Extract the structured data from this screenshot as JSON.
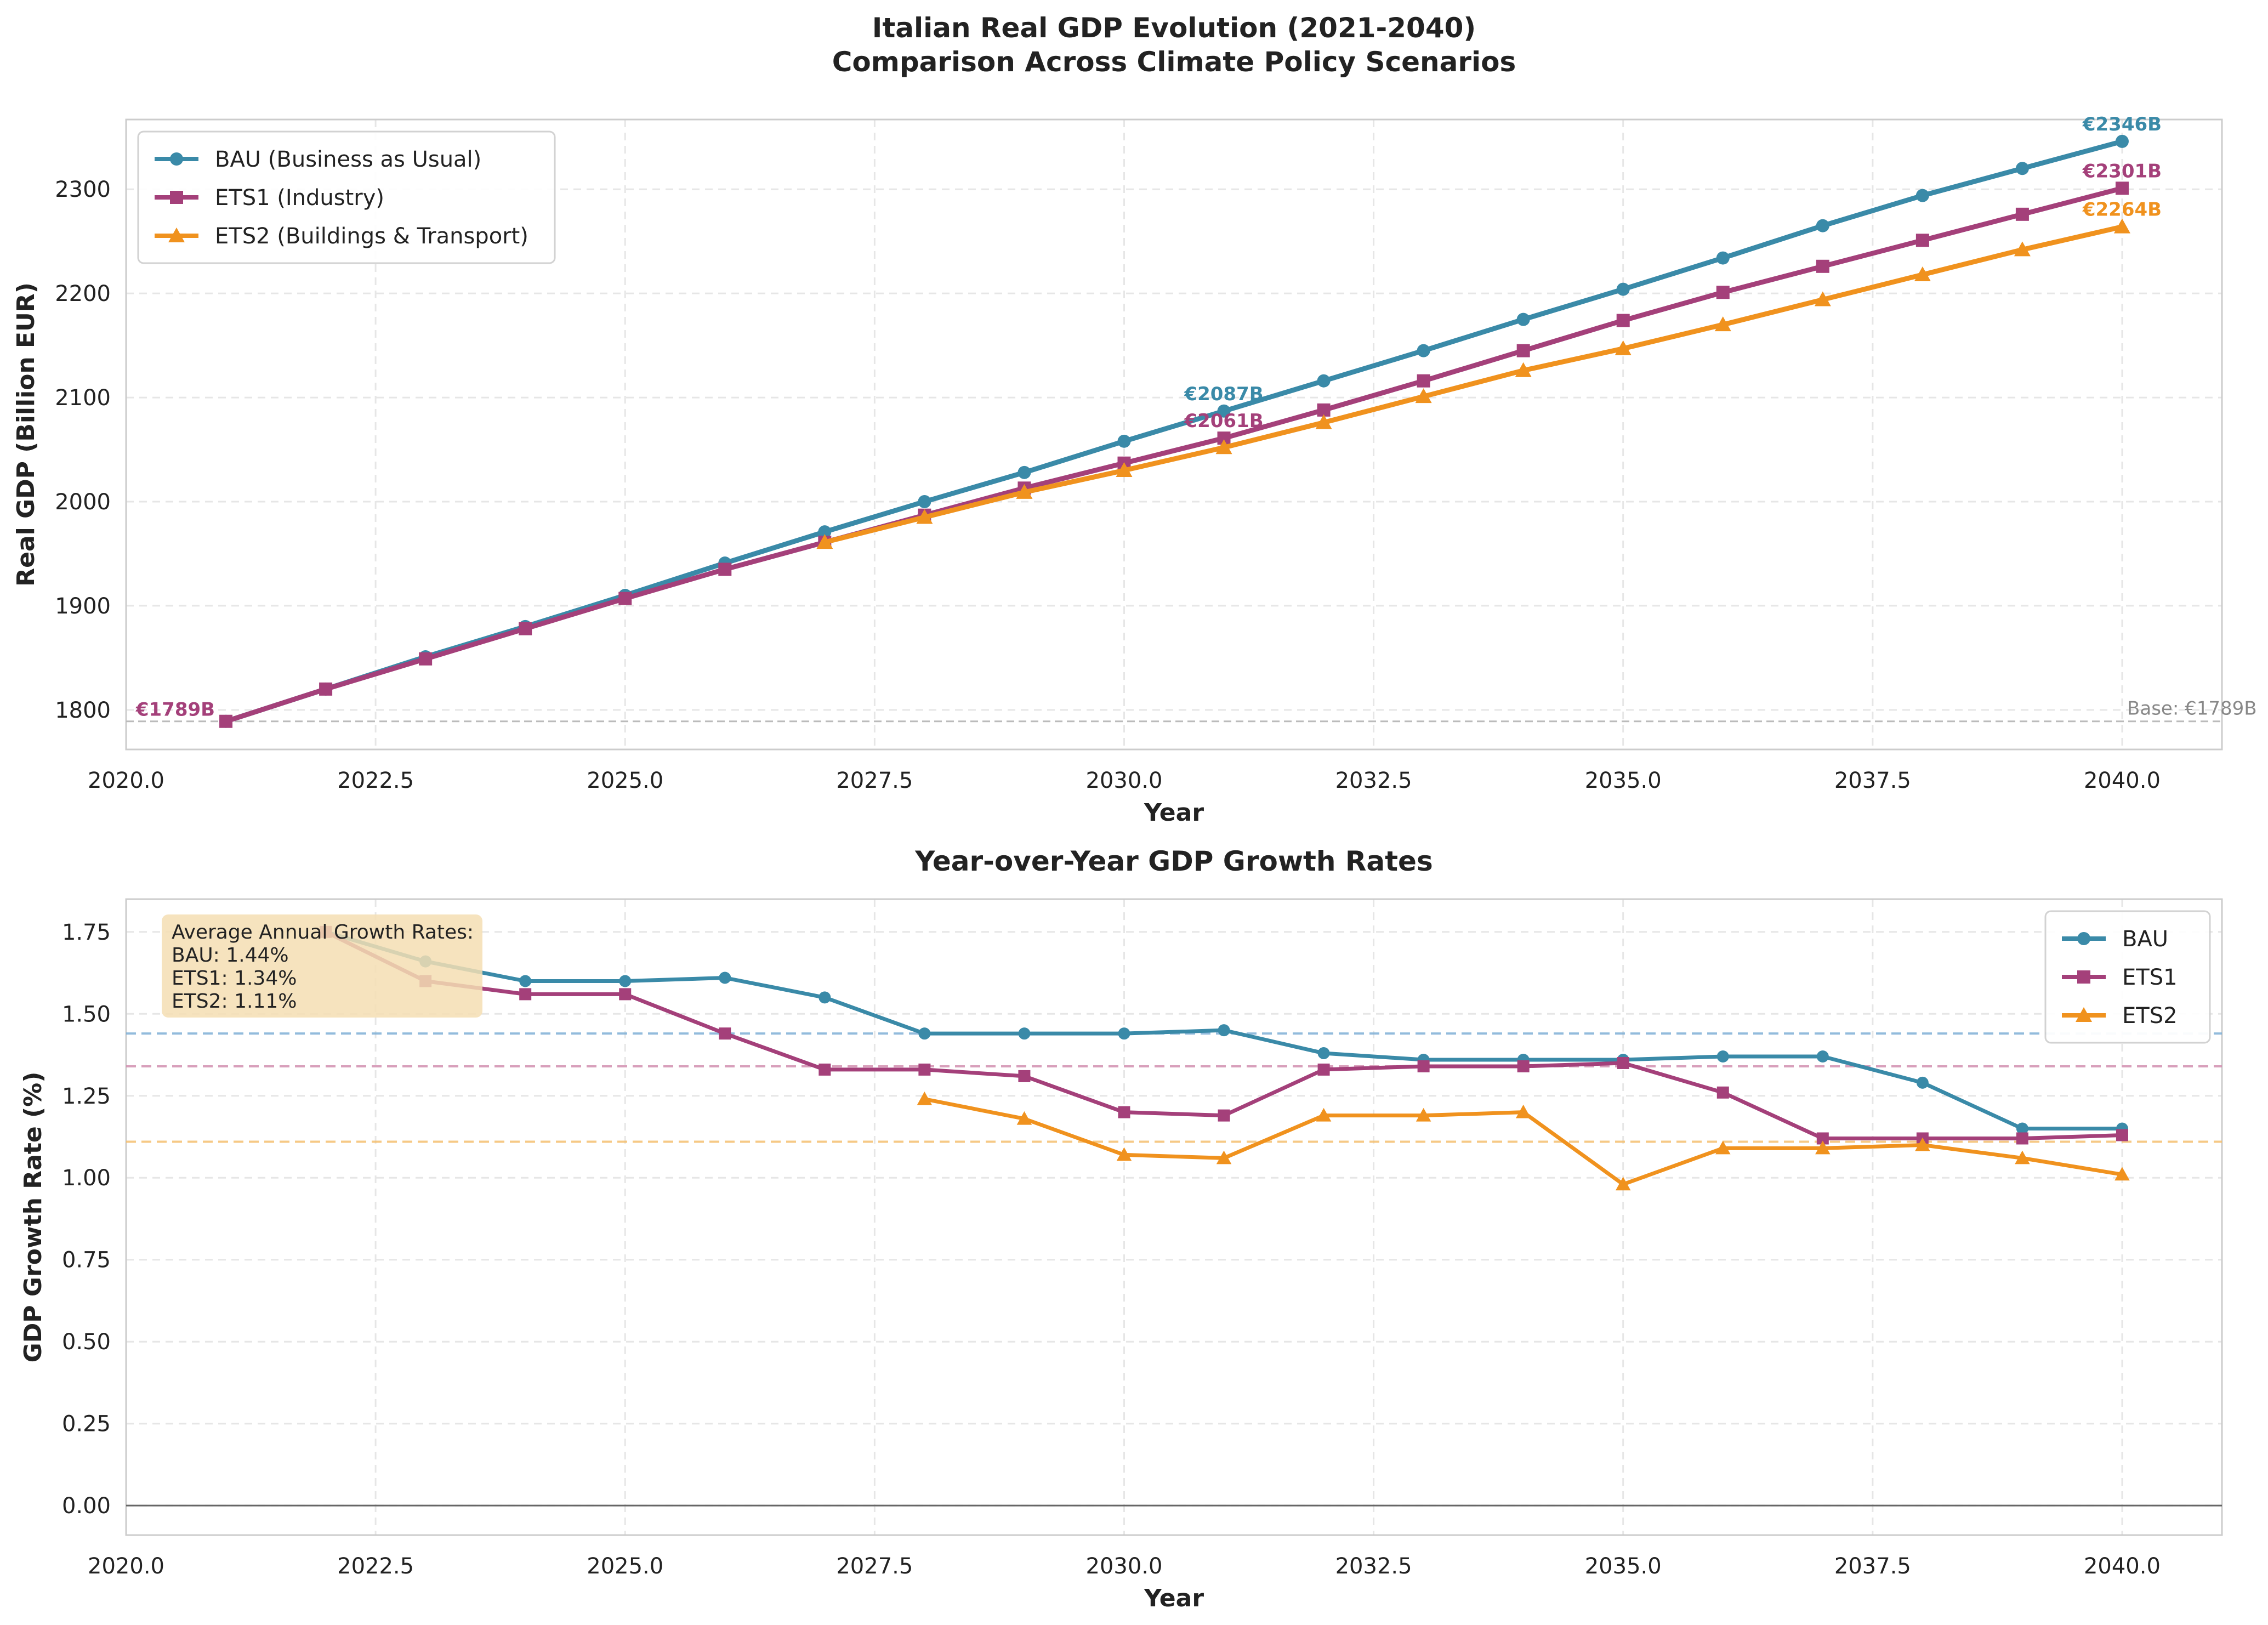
{
  "chart_data": [
    {
      "type": "line",
      "title": "Italian Real GDP Evolution (2021-2040)\nComparison Across Climate Policy Scenarios",
      "xlabel": "Year",
      "ylabel": "Real GDP (Billion EUR)",
      "xlim": [
        2020.0,
        2041.0
      ],
      "ylim": [
        1762,
        2367
      ],
      "xticks": [
        2020.0,
        2022.5,
        2025.0,
        2027.5,
        2030.0,
        2032.5,
        2035.0,
        2037.5,
        2040.0
      ],
      "xtick_labels": [
        "2020.0",
        "2022.5",
        "2025.0",
        "2027.5",
        "2030.0",
        "2032.5",
        "2035.0",
        "2037.5",
        "2040.0"
      ],
      "yticks": [
        1800,
        1900,
        2000,
        2100,
        2200,
        2300
      ],
      "ytick_labels": [
        "1800",
        "1900",
        "2000",
        "2100",
        "2200",
        "2300"
      ],
      "grid": true,
      "legend_position": "upper-left",
      "series": [
        {
          "name": "BAU (Business as Usual)",
          "color": "#3a8aa8",
          "marker": "circle",
          "x": [
            2021,
            2022,
            2023,
            2024,
            2025,
            2026,
            2027,
            2028,
            2029,
            2030,
            2031,
            2032,
            2033,
            2034,
            2035,
            2036,
            2037,
            2038,
            2039,
            2040
          ],
          "values": [
            1789,
            1820,
            1851,
            1880,
            1910,
            1941,
            1971,
            2000,
            2028,
            2058,
            2087,
            2116,
            2145,
            2175,
            2204,
            2234,
            2265,
            2294,
            2320,
            2346
          ]
        },
        {
          "name": "ETS1 (Industry)",
          "color": "#a4407a",
          "marker": "square",
          "x": [
            2021,
            2022,
            2023,
            2024,
            2025,
            2026,
            2027,
            2028,
            2029,
            2030,
            2031,
            2032,
            2033,
            2034,
            2035,
            2036,
            2037,
            2038,
            2039,
            2040
          ],
          "values": [
            1789,
            1820,
            1849,
            1878,
            1907,
            1935,
            1961,
            1987,
            2013,
            2037,
            2061,
            2088,
            2116,
            2145,
            2174,
            2201,
            2226,
            2251,
            2276,
            2301
          ]
        },
        {
          "name": "ETS2 (Buildings & Transport)",
          "color": "#f0921e",
          "marker": "triangle",
          "x": [
            2027,
            2028,
            2029,
            2030,
            2031,
            2032,
            2033,
            2034,
            2035,
            2036,
            2037,
            2038,
            2039,
            2040
          ],
          "values": [
            1961,
            1985,
            2009,
            2030,
            2052,
            2076,
            2101,
            2126,
            2147,
            2170,
            2194,
            2218,
            2242,
            2264
          ]
        }
      ],
      "annotations": [
        {
          "text": "€1789B",
          "x": 2021,
          "y": 1789,
          "color": "#a4407a"
        },
        {
          "text": "€2087B",
          "x": 2031,
          "y": 2087,
          "color": "#3a8aa8"
        },
        {
          "text": "€2061B",
          "x": 2031,
          "y": 2061,
          "color": "#a4407a"
        },
        {
          "text": "€2346B",
          "x": 2040,
          "y": 2346,
          "color": "#3a8aa8"
        },
        {
          "text": "€2301B",
          "x": 2040,
          "y": 2301,
          "color": "#a4407a"
        },
        {
          "text": "€2264B",
          "x": 2040,
          "y": 2264,
          "color": "#f0921e"
        }
      ],
      "baseline": {
        "value": 1789,
        "label": "Base: €1789B",
        "color": "#bbbbbb"
      }
    },
    {
      "type": "line",
      "title": "Year-over-Year GDP Growth Rates",
      "xlabel": "Year",
      "ylabel": "GDP Growth Rate (%)",
      "xlim": [
        2020.0,
        2041.0
      ],
      "ylim": [
        -0.09,
        1.85
      ],
      "xticks": [
        2020.0,
        2022.5,
        2025.0,
        2027.5,
        2030.0,
        2032.5,
        2035.0,
        2037.5,
        2040.0
      ],
      "xtick_labels": [
        "2020.0",
        "2022.5",
        "2025.0",
        "2027.5",
        "2030.0",
        "2032.5",
        "2035.0",
        "2037.5",
        "2040.0"
      ],
      "yticks": [
        0.0,
        0.25,
        0.5,
        0.75,
        1.0,
        1.25,
        1.5,
        1.75
      ],
      "ytick_labels": [
        "0.00",
        "0.25",
        "0.50",
        "0.75",
        "1.00",
        "1.25",
        "1.50",
        "1.75"
      ],
      "grid": true,
      "legend_position": "upper-right",
      "series": [
        {
          "name": "BAU",
          "color": "#3a8aa8",
          "marker": "circle",
          "x": [
            2022,
            2023,
            2024,
            2025,
            2026,
            2027,
            2028,
            2029,
            2030,
            2031,
            2032,
            2033,
            2034,
            2035,
            2036,
            2037,
            2038,
            2039,
            2040
          ],
          "values": [
            1.75,
            1.66,
            1.6,
            1.6,
            1.61,
            1.55,
            1.44,
            1.44,
            1.44,
            1.45,
            1.38,
            1.36,
            1.36,
            1.36,
            1.37,
            1.37,
            1.29,
            1.15,
            1.15
          ]
        },
        {
          "name": "ETS1",
          "color": "#a4407a",
          "marker": "square",
          "x": [
            2022,
            2023,
            2024,
            2025,
            2026,
            2027,
            2028,
            2029,
            2030,
            2031,
            2032,
            2033,
            2034,
            2035,
            2036,
            2037,
            2038,
            2039,
            2040
          ],
          "values": [
            1.75,
            1.6,
            1.56,
            1.56,
            1.44,
            1.33,
            1.33,
            1.31,
            1.2,
            1.19,
            1.33,
            1.34,
            1.34,
            1.35,
            1.26,
            1.12,
            1.12,
            1.12,
            1.13
          ]
        },
        {
          "name": "ETS2",
          "color": "#f0921e",
          "marker": "triangle",
          "x": [
            2028,
            2029,
            2030,
            2031,
            2032,
            2033,
            2034,
            2035,
            2036,
            2037,
            2038,
            2039,
            2040
          ],
          "values": [
            1.24,
            1.18,
            1.07,
            1.06,
            1.19,
            1.19,
            1.2,
            0.98,
            1.09,
            1.09,
            1.1,
            1.06,
            1.01
          ]
        }
      ],
      "reference_lines": [
        {
          "value": 1.44,
          "color": "#7fb0d6"
        },
        {
          "value": 1.34,
          "color": "#d28fb0"
        },
        {
          "value": 1.11,
          "color": "#f5c070"
        },
        {
          "value": 0.0,
          "color": "#666666"
        }
      ],
      "info_box": {
        "lines": [
          "Average Annual Growth Rates:",
          "BAU: 1.44%",
          "ETS1: 1.34%",
          "ETS2: 1.11%"
        ],
        "background": "#f5deb3"
      }
    }
  ]
}
